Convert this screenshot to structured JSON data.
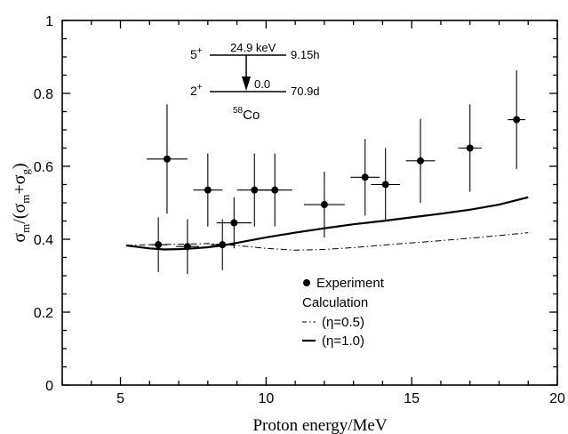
{
  "chart_data": {
    "type": "scatter",
    "xlabel": "Proton energy/MeV",
    "ylabel": {
      "main": "σ",
      "sub_m": "m",
      "mid": "/(σ",
      "sub_m2": "m",
      "plus": "+σ",
      "sub_g": "g",
      "close": ")"
    },
    "xlim": [
      3,
      20
    ],
    "ylim": [
      0,
      1
    ],
    "xticks": [
      5,
      10,
      15,
      20
    ],
    "xtick_labels": [
      "5",
      "10",
      "15",
      "20"
    ],
    "yticks": [
      0,
      0.2,
      0.4,
      0.6,
      0.8,
      1
    ],
    "ytick_labels": [
      "0",
      "0.2",
      "0.4",
      "0.6",
      "0.8",
      "1"
    ],
    "grid": false,
    "legend_position": "bottom-right",
    "series": [
      {
        "name": "Experiment",
        "kind": "points",
        "points": [
          {
            "x": 6.3,
            "y": 0.385,
            "xerr": 0.3,
            "yerr": 0.075
          },
          {
            "x": 6.6,
            "y": 0.62,
            "xerr": 0.7,
            "yerr": 0.15
          },
          {
            "x": 7.3,
            "y": 0.38,
            "xerr": 0.4,
            "yerr": 0.075
          },
          {
            "x": 8.0,
            "y": 0.535,
            "xerr": 0.5,
            "yerr": 0.1
          },
          {
            "x": 8.5,
            "y": 0.385,
            "xerr": 0.4,
            "yerr": 0.07
          },
          {
            "x": 8.9,
            "y": 0.445,
            "xerr": 0.6,
            "yerr": 0.07
          },
          {
            "x": 9.6,
            "y": 0.535,
            "xerr": 0.6,
            "yerr": 0.1
          },
          {
            "x": 10.3,
            "y": 0.535,
            "xerr": 0.6,
            "yerr": 0.1
          },
          {
            "x": 12.0,
            "y": 0.495,
            "xerr": 0.7,
            "yerr": 0.09
          },
          {
            "x": 13.4,
            "y": 0.57,
            "xerr": 0.5,
            "yerr": 0.105
          },
          {
            "x": 14.1,
            "y": 0.55,
            "xerr": 0.5,
            "yerr": 0.1
          },
          {
            "x": 15.3,
            "y": 0.615,
            "xerr": 0.5,
            "yerr": 0.115
          },
          {
            "x": 17.0,
            "y": 0.65,
            "xerr": 0.4,
            "yerr": 0.12
          },
          {
            "x": 18.6,
            "y": 0.728,
            "xerr": 0.3,
            "yerr": 0.135
          }
        ]
      },
      {
        "name": "(η=0.5)",
        "kind": "dashdot",
        "x": [
          5.2,
          6.0,
          7.0,
          8.0,
          9.0,
          10.0,
          11.0,
          12.0,
          13.0,
          14.0,
          15.0,
          16.0,
          17.0,
          18.0,
          19.0
        ],
        "y": [
          0.383,
          0.385,
          0.386,
          0.388,
          0.383,
          0.375,
          0.37,
          0.372,
          0.377,
          0.384,
          0.39,
          0.396,
          0.403,
          0.41,
          0.418
        ]
      },
      {
        "name": "(η=1.0)",
        "kind": "solid",
        "x": [
          5.2,
          6.0,
          6.5,
          7.0,
          7.5,
          8.0,
          8.5,
          9.0,
          10.0,
          11.0,
          12.0,
          13.0,
          14.0,
          15.0,
          16.0,
          17.0,
          18.0,
          19.0
        ],
        "y": [
          0.383,
          0.375,
          0.372,
          0.373,
          0.375,
          0.378,
          0.383,
          0.39,
          0.405,
          0.418,
          0.43,
          0.441,
          0.45,
          0.46,
          0.47,
          0.481,
          0.495,
          0.515
        ]
      }
    ],
    "legend": {
      "experiment_label": "Experiment",
      "calculation_label": "Calculation",
      "eta05_label": "(η=0.5)",
      "eta10_label": "(η=1.0)"
    },
    "inset": {
      "upper_spin": "5",
      "upper_parity": "+",
      "upper_energy": "24.9 keV",
      "upper_halflife": "9.15h",
      "lower_spin": "2",
      "lower_parity": "+",
      "lower_energy": "0.0",
      "lower_halflife": "70.9d",
      "nuclide_mass": "58",
      "nuclide_symbol": "Co"
    }
  }
}
